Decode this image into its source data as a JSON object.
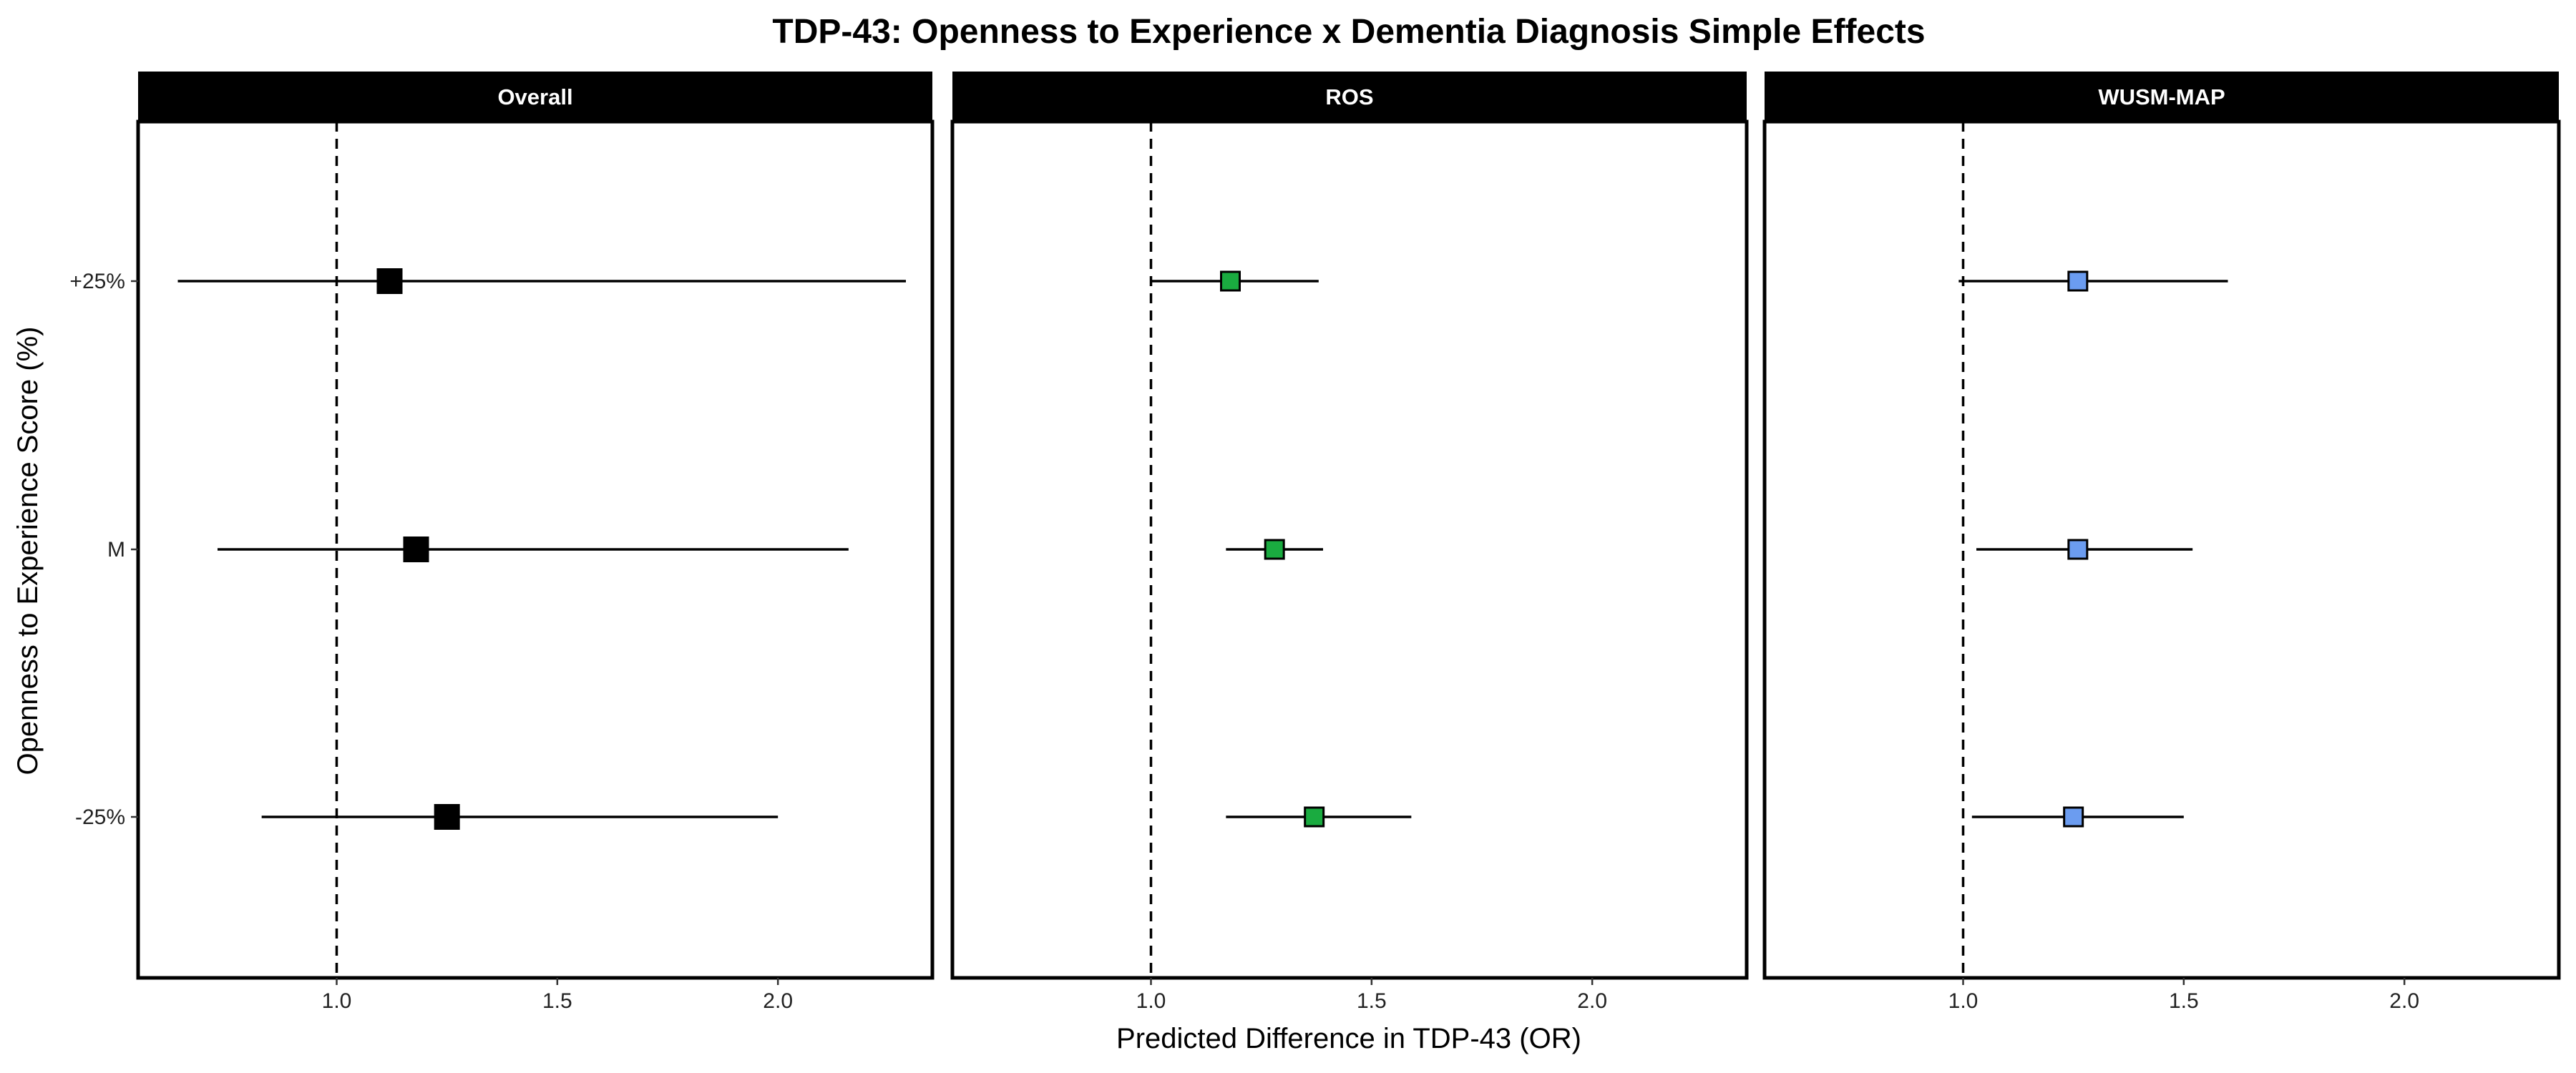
{
  "chart_data": {
    "type": "forest",
    "title": "TDP-43: Openness to Experience x Dementia Diagnosis Simple Effects",
    "xlabel": "Predicted Difference in TDP-43 (OR)",
    "ylabel": "Openness to Experience Score (%)",
    "xlim": [
      0.55,
      2.35
    ],
    "xticks": [
      1.0,
      1.5,
      2.0
    ],
    "xtick_labels": [
      "1.0",
      "1.5",
      "2.0"
    ],
    "reference_line": 1.0,
    "categories": [
      "+25%",
      "M",
      "-25%"
    ],
    "grid": false,
    "panels": [
      {
        "name": "Overall",
        "color": "#000000",
        "points": [
          {
            "category": "+25%",
            "estimate": 1.12,
            "lower": 0.64,
            "upper": 2.29
          },
          {
            "category": "M",
            "estimate": 1.18,
            "lower": 0.73,
            "upper": 2.16
          },
          {
            "category": "-25%",
            "estimate": 1.25,
            "lower": 0.83,
            "upper": 2.0
          }
        ]
      },
      {
        "name": "ROS",
        "color": "#1aab40",
        "points": [
          {
            "category": "+25%",
            "estimate": 1.18,
            "lower": 1.0,
            "upper": 1.38
          },
          {
            "category": "M",
            "estimate": 1.28,
            "lower": 1.17,
            "upper": 1.39
          },
          {
            "category": "-25%",
            "estimate": 1.37,
            "lower": 1.17,
            "upper": 1.59
          }
        ]
      },
      {
        "name": "WUSM-MAP",
        "color": "#6b9cf0",
        "points": [
          {
            "category": "+25%",
            "estimate": 1.26,
            "lower": 0.99,
            "upper": 1.6
          },
          {
            "category": "M",
            "estimate": 1.26,
            "lower": 1.03,
            "upper": 1.52
          },
          {
            "category": "-25%",
            "estimate": 1.25,
            "lower": 1.02,
            "upper": 1.5
          }
        ]
      }
    ]
  }
}
